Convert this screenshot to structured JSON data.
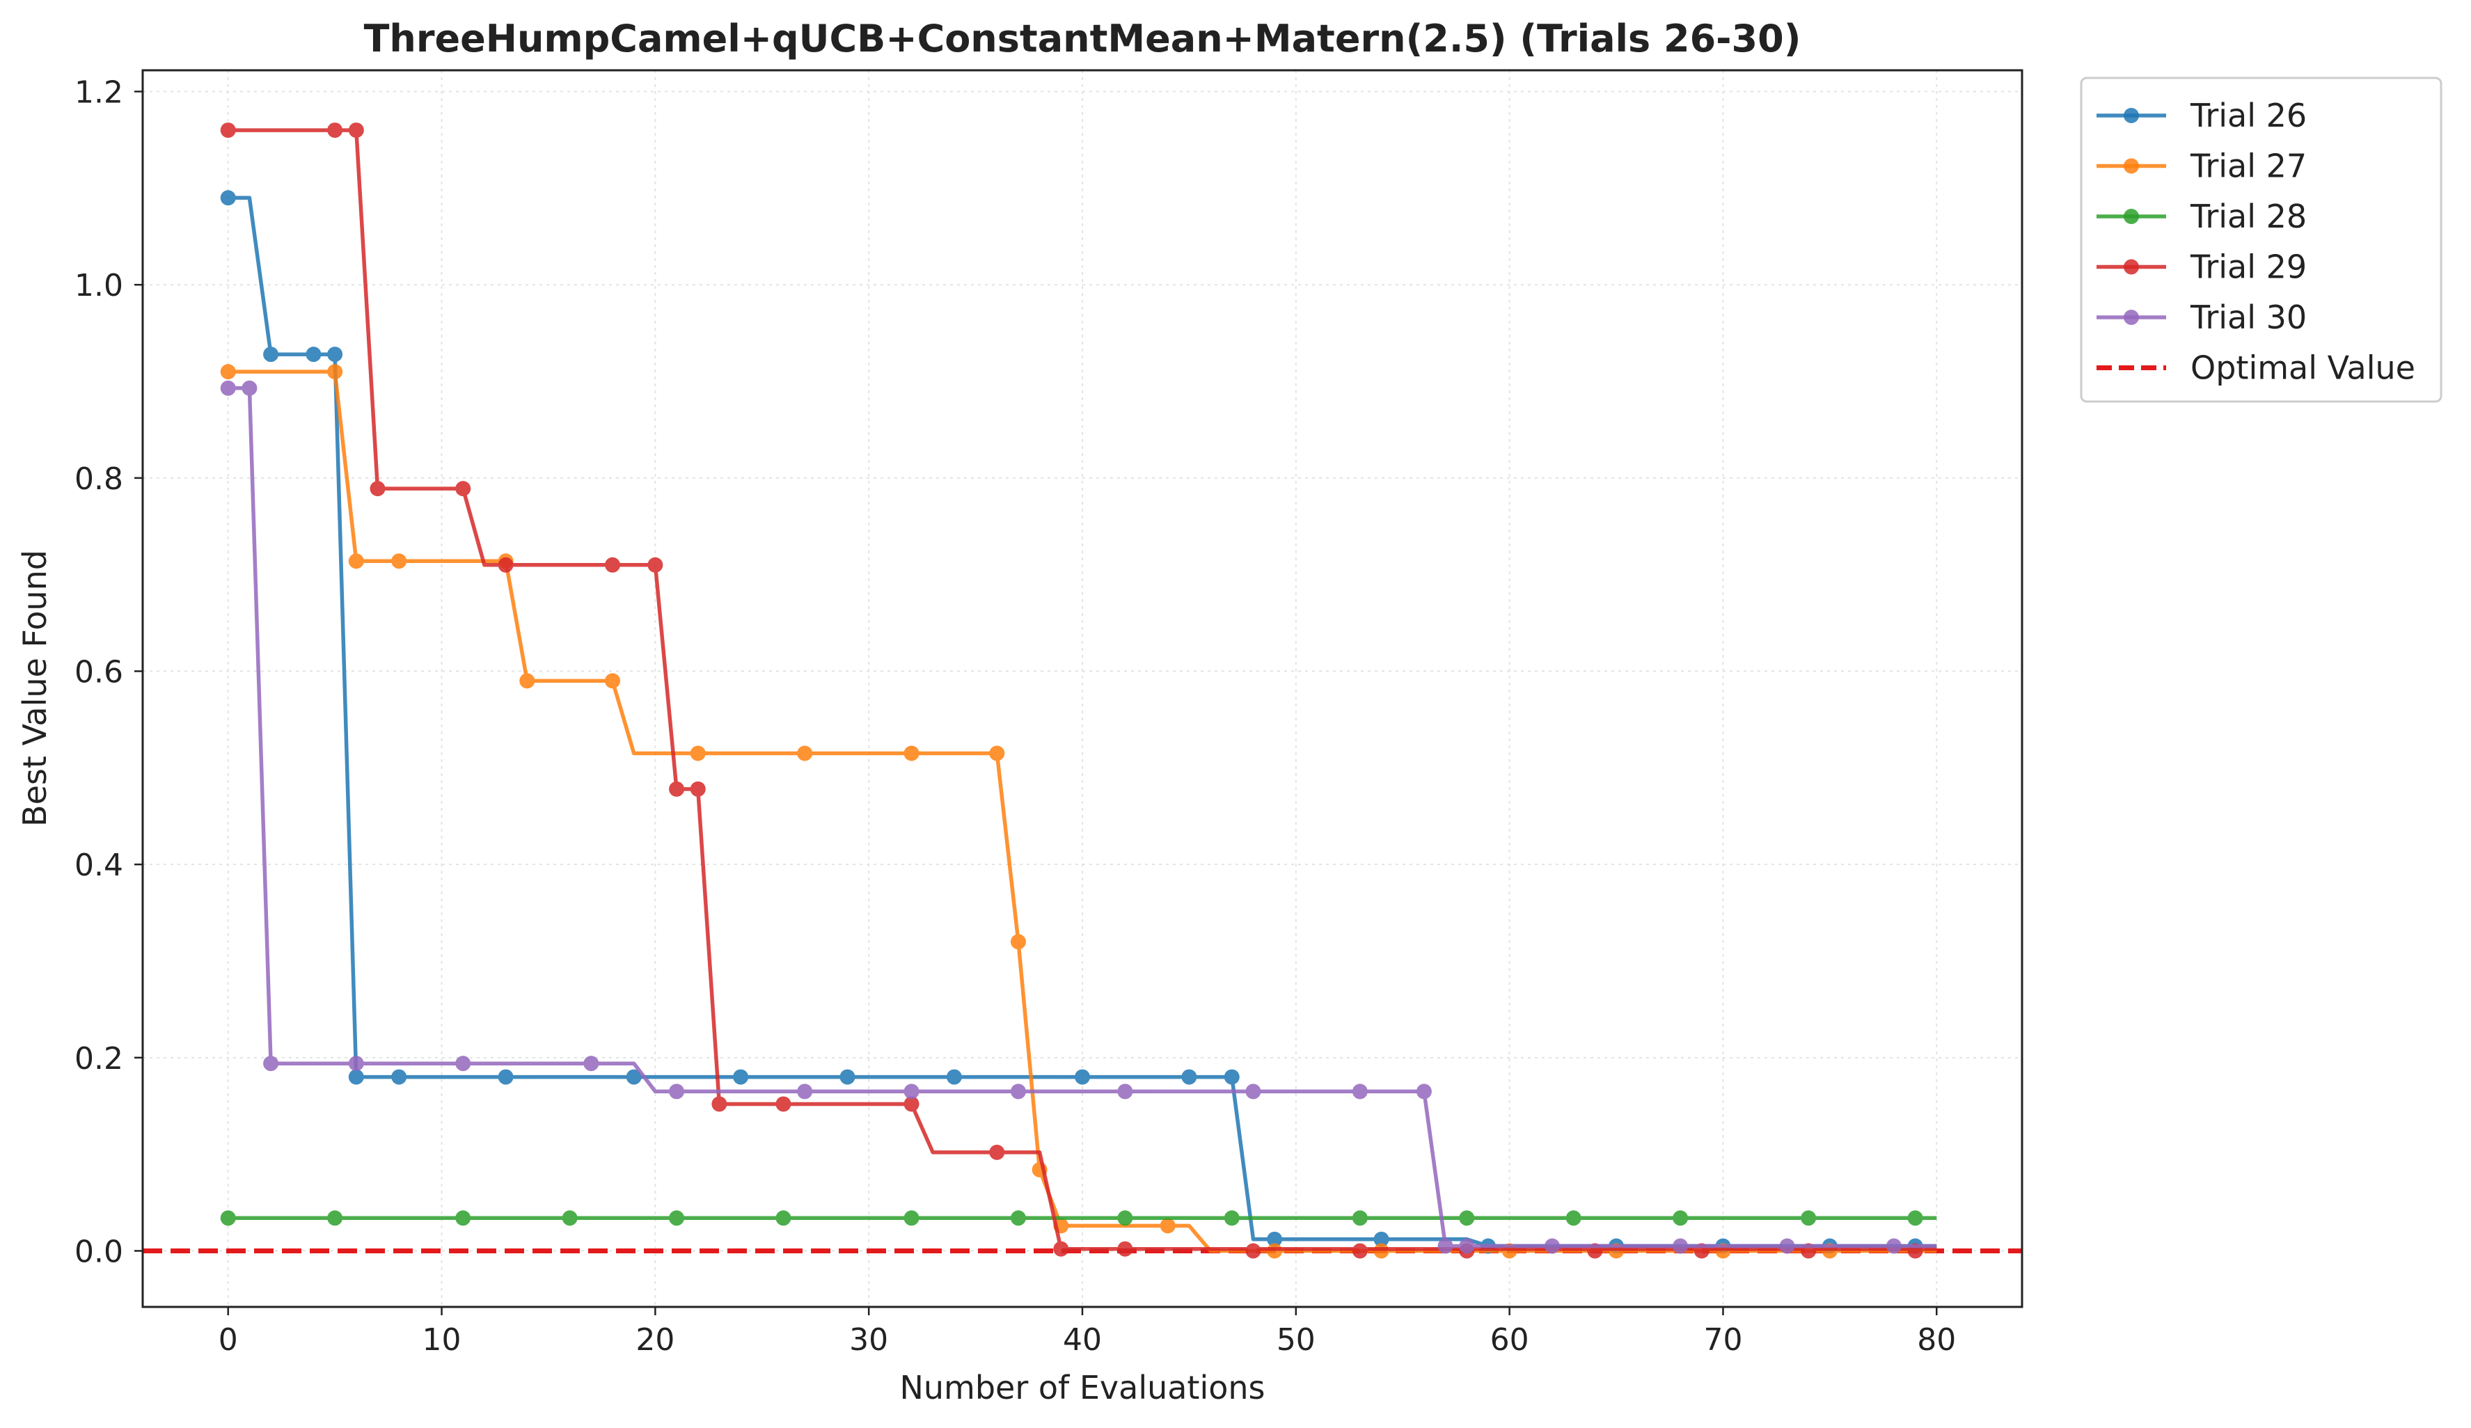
{
  "chart_data": {
    "type": "line",
    "title": "ThreeHumpCamel+qUCB+ConstantMean+Matern(2.5) (Trials 26-30)",
    "xlabel": "Number of Evaluations",
    "ylabel": "Best Value Found",
    "xlim": [
      -4,
      84
    ],
    "ylim": [
      -0.058,
      1.222
    ],
    "xticks": [
      0,
      10,
      20,
      30,
      40,
      50,
      60,
      70,
      80
    ],
    "yticks": [
      0.0,
      0.2,
      0.4,
      0.6,
      0.8,
      1.0,
      1.2
    ],
    "xtick_labels": [
      "0",
      "10",
      "20",
      "30",
      "40",
      "50",
      "60",
      "70",
      "80"
    ],
    "ytick_labels": [
      "0.0",
      "0.2",
      "0.4",
      "0.6",
      "0.8",
      "1.0",
      "1.2"
    ],
    "grid": true,
    "legend_position": "outside-top-right",
    "series": [
      {
        "name": "Trial 26",
        "color": "#1f77b4",
        "line": [
          [
            0,
            1.09
          ],
          [
            1,
            1.09
          ],
          [
            2,
            0.928
          ],
          [
            5,
            0.928
          ],
          [
            6,
            0.18
          ],
          [
            47,
            0.18
          ],
          [
            48,
            0.012
          ],
          [
            58,
            0.012
          ],
          [
            59,
            0.005
          ],
          [
            80,
            0.005
          ]
        ],
        "markers": [
          [
            0,
            1.09
          ],
          [
            2,
            0.928
          ],
          [
            4,
            0.928
          ],
          [
            5,
            0.928
          ],
          [
            6,
            0.18
          ],
          [
            8,
            0.18
          ],
          [
            13,
            0.18
          ],
          [
            19,
            0.18
          ],
          [
            24,
            0.18
          ],
          [
            29,
            0.18
          ],
          [
            34,
            0.18
          ],
          [
            40,
            0.18
          ],
          [
            45,
            0.18
          ],
          [
            47,
            0.18
          ],
          [
            49,
            0.012
          ],
          [
            54,
            0.012
          ],
          [
            59,
            0.005
          ],
          [
            65,
            0.005
          ],
          [
            70,
            0.005
          ],
          [
            75,
            0.005
          ],
          [
            79,
            0.005
          ]
        ]
      },
      {
        "name": "Trial 27",
        "color": "#ff7f0e",
        "line": [
          [
            0,
            0.91
          ],
          [
            5,
            0.91
          ],
          [
            6,
            0.714
          ],
          [
            13,
            0.714
          ],
          [
            14,
            0.59
          ],
          [
            18,
            0.59
          ],
          [
            19,
            0.515
          ],
          [
            36,
            0.515
          ],
          [
            37,
            0.32
          ],
          [
            38,
            0.084
          ],
          [
            39,
            0.026
          ],
          [
            45,
            0.026
          ],
          [
            46,
            0.0
          ],
          [
            80,
            0.0
          ]
        ],
        "markers": [
          [
            0,
            0.91
          ],
          [
            5,
            0.91
          ],
          [
            6,
            0.714
          ],
          [
            8,
            0.714
          ],
          [
            13,
            0.714
          ],
          [
            14,
            0.59
          ],
          [
            18,
            0.59
          ],
          [
            22,
            0.515
          ],
          [
            27,
            0.515
          ],
          [
            32,
            0.515
          ],
          [
            36,
            0.515
          ],
          [
            37,
            0.32
          ],
          [
            38,
            0.084
          ],
          [
            39,
            0.026
          ],
          [
            44,
            0.026
          ],
          [
            49,
            0.0
          ],
          [
            54,
            0.0
          ],
          [
            60,
            0.0
          ],
          [
            65,
            0.0
          ],
          [
            70,
            0.0
          ],
          [
            75,
            0.0
          ]
        ]
      },
      {
        "name": "Trial 28",
        "color": "#2ca02c",
        "line": [
          [
            0,
            0.034
          ],
          [
            80,
            0.034
          ]
        ],
        "markers": [
          [
            0,
            0.034
          ],
          [
            5,
            0.034
          ],
          [
            11,
            0.034
          ],
          [
            16,
            0.034
          ],
          [
            21,
            0.034
          ],
          [
            26,
            0.034
          ],
          [
            32,
            0.034
          ],
          [
            37,
            0.034
          ],
          [
            42,
            0.034
          ],
          [
            47,
            0.034
          ],
          [
            53,
            0.034
          ],
          [
            58,
            0.034
          ],
          [
            63,
            0.034
          ],
          [
            68,
            0.034
          ],
          [
            74,
            0.034
          ],
          [
            79,
            0.034
          ]
        ]
      },
      {
        "name": "Trial 29",
        "color": "#d62728",
        "line": [
          [
            0,
            1.16
          ],
          [
            6,
            1.16
          ],
          [
            7,
            0.789
          ],
          [
            11,
            0.789
          ],
          [
            12,
            0.71
          ],
          [
            20,
            0.71
          ],
          [
            21,
            0.478
          ],
          [
            22,
            0.478
          ],
          [
            23,
            0.152
          ],
          [
            32,
            0.152
          ],
          [
            33,
            0.102
          ],
          [
            38,
            0.102
          ],
          [
            39,
            0.002
          ],
          [
            80,
            0.002
          ]
        ],
        "markers": [
          [
            0,
            1.16
          ],
          [
            5,
            1.16
          ],
          [
            6,
            1.16
          ],
          [
            7,
            0.789
          ],
          [
            11,
            0.789
          ],
          [
            13,
            0.71
          ],
          [
            18,
            0.71
          ],
          [
            20,
            0.71
          ],
          [
            21,
            0.478
          ],
          [
            22,
            0.478
          ],
          [
            23,
            0.152
          ],
          [
            26,
            0.152
          ],
          [
            32,
            0.152
          ],
          [
            36,
            0.102
          ],
          [
            39,
            0.002
          ],
          [
            42,
            0.002
          ],
          [
            48,
            0.0
          ],
          [
            53,
            0.0
          ],
          [
            58,
            0.0
          ],
          [
            64,
            0.0
          ],
          [
            69,
            0.0
          ],
          [
            74,
            0.0
          ],
          [
            79,
            0.0
          ]
        ]
      },
      {
        "name": "Trial 30",
        "color": "#9467bd",
        "line": [
          [
            0,
            0.893
          ],
          [
            1,
            0.893
          ],
          [
            2,
            0.194
          ],
          [
            19,
            0.194
          ],
          [
            20,
            0.165
          ],
          [
            56,
            0.165
          ],
          [
            57,
            0.005
          ],
          [
            80,
            0.005
          ]
        ],
        "markers": [
          [
            0,
            0.893
          ],
          [
            1,
            0.893
          ],
          [
            2,
            0.194
          ],
          [
            6,
            0.194
          ],
          [
            11,
            0.194
          ],
          [
            17,
            0.194
          ],
          [
            21,
            0.165
          ],
          [
            27,
            0.165
          ],
          [
            32,
            0.165
          ],
          [
            37,
            0.165
          ],
          [
            42,
            0.165
          ],
          [
            48,
            0.165
          ],
          [
            53,
            0.165
          ],
          [
            56,
            0.165
          ],
          [
            57,
            0.005
          ],
          [
            58,
            0.005
          ],
          [
            62,
            0.005
          ],
          [
            68,
            0.005
          ],
          [
            73,
            0.005
          ],
          [
            78,
            0.005
          ]
        ]
      }
    ],
    "reference_line": {
      "name": "Optimal Value",
      "y": 0.0,
      "color": "#e31a1c",
      "style": "dashed"
    }
  }
}
